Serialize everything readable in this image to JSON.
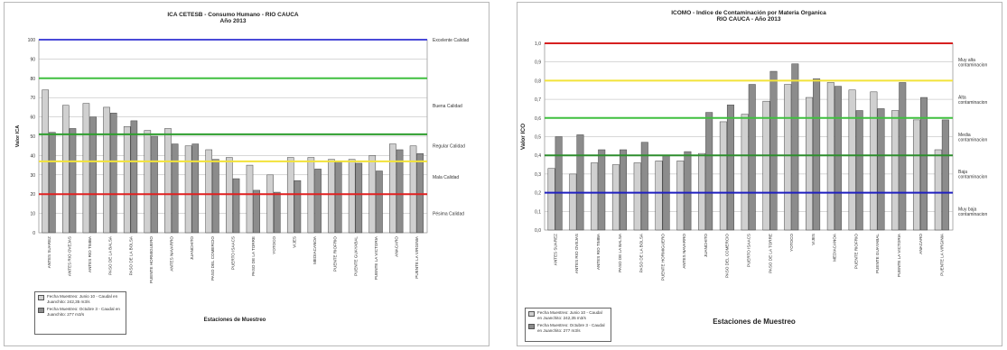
{
  "chart_data": [
    {
      "type": "bar",
      "title": "ICA CETESB - Consumo Humano - RIO CAUCA",
      "subtitle": "Año 2013",
      "xlabel": "Estaciones de Muestreo",
      "ylabel": "Valor ICA",
      "ylim": [
        0,
        100
      ],
      "yticks": [
        "0",
        "10",
        "20",
        "30",
        "40",
        "50",
        "60",
        "70",
        "80",
        "90",
        "100"
      ],
      "grid": true,
      "legend_position": "bottom-left",
      "categories": [
        "ANTES SUAREZ",
        "ANTES RIO OVEJAS",
        "ANTES RIO TIMBA",
        "PASO DE LA BALSA",
        "PASO DE LA BOLSA",
        "PUENTE HORMIGUERO",
        "ANTES NAVARRO",
        "JUANCHITO",
        "PASO DEL COMERCIO",
        "PUERTO ISAACS",
        "PASO DE LA TORRE",
        "YOTOCO",
        "VIJES",
        "MEDIACANOA",
        "PUENTE RIOFRIO",
        "PUENTE GUAYABAL",
        "PUENTE LA VICTORIA",
        "ANACARO",
        "PUENTE LA VIRGINIA"
      ],
      "series": [
        {
          "name": "Fecha Muestreo: Junio 10 - Caudal en Juanchito: 242,35 m3/s",
          "color": "#d0d0d0",
          "values": [
            74,
            66,
            67,
            65,
            55,
            53,
            54,
            45,
            43,
            39,
            35,
            30,
            39,
            39,
            38,
            38,
            40,
            46,
            45
          ]
        },
        {
          "name": "Fecha Muestreo: Octubre 3 - Caudal en Juanchito: 277 m3/s",
          "color": "#8c8c8c",
          "values": [
            52,
            54,
            60,
            62,
            58,
            50,
            46,
            46,
            38,
            28,
            22,
            21,
            27,
            33,
            37,
            36,
            32,
            43,
            41
          ]
        }
      ],
      "reference_lines": [
        {
          "value": 100,
          "color": "#4a4ad8",
          "label": "Excelente Calidad"
        },
        {
          "value": 80,
          "color": "#3fbf3f",
          "label": "Buena Calidad"
        },
        {
          "value": 51,
          "color": "#2e9e2e",
          "label": "Regular Calidad"
        },
        {
          "value": 37,
          "color": "#f2e33a",
          "label": "Mala Calidad"
        },
        {
          "value": 20,
          "color": "#e02020",
          "label": "Pésima Calidad"
        }
      ],
      "band_label_values": [
        100,
        66,
        45,
        29,
        10
      ]
    },
    {
      "type": "bar",
      "title": "ICOMO - Indice de Contaminación por Materia Organica",
      "subtitle": "RIO CAUCA - Año 2013",
      "xlabel": "Estaciones de Muestreo",
      "ylabel": "Valor ICO",
      "ylim": [
        0,
        1
      ],
      "yticks": [
        "0,0",
        "0,1",
        "0,2",
        "0,3",
        "0,4",
        "0,5",
        "0,6",
        "0,7",
        "0,8",
        "0,9",
        "1,0"
      ],
      "grid": true,
      "legend_position": "bottom-left",
      "categories": [
        "ANTES SUAREZ",
        "ANTES RIO OVEJAS",
        "ANTES RIO TIMBA",
        "PASO DE LA BALSA",
        "PASO DE LA BOLSA",
        "PUENTE HORMIGUERO",
        "ANTES NAVARRO",
        "JUANCHITO",
        "PASO DEL COMERCIO",
        "PUERTO ISAACS",
        "PASO DE LA TORRE",
        "YOTOCO",
        "VIJES",
        "MEDIACANOA",
        "PUENTE RIOFRIO",
        "PUENTE GUAYABAL",
        "PUENTE LA VICTORIA",
        "ANACARO",
        "PUENTE LA VIRGINIA"
      ],
      "series": [
        {
          "name": "Fecha Muestreo: Junio 10 - Caudal en Juanchito: 242,35 m3/s",
          "color": "#d0d0d0",
          "values": [
            0.33,
            0.3,
            0.36,
            0.35,
            0.36,
            0.37,
            0.37,
            0.41,
            0.58,
            0.62,
            0.69,
            0.78,
            0.71,
            0.79,
            0.75,
            0.74,
            0.64,
            0.59,
            0.43
          ]
        },
        {
          "name": "Fecha Muestreo: Octubre 3 - Caudal en Juanchito: 277 m3/s",
          "color": "#8c8c8c",
          "values": [
            0.5,
            0.51,
            0.43,
            0.43,
            0.47,
            0.4,
            0.42,
            0.63,
            0.67,
            0.78,
            0.85,
            0.89,
            0.81,
            0.77,
            0.64,
            0.65,
            0.79,
            0.71,
            0.59
          ]
        }
      ],
      "reference_lines": [
        {
          "value": 1.0,
          "color": "#d62020",
          "label": "Muy alta contaminacion"
        },
        {
          "value": 0.8,
          "color": "#f2e33a",
          "label": "Alta contaminacion"
        },
        {
          "value": 0.6,
          "color": "#3fbf3f",
          "label": "Media contaminacion"
        },
        {
          "value": 0.4,
          "color": "#2e8e2e",
          "label": "Baja contaminacion"
        },
        {
          "value": 0.2,
          "color": "#2020c0",
          "label": "Muy baja contaminacion"
        }
      ],
      "band_label_values": [
        0.9,
        0.7,
        0.5,
        0.3,
        0.1
      ]
    }
  ]
}
